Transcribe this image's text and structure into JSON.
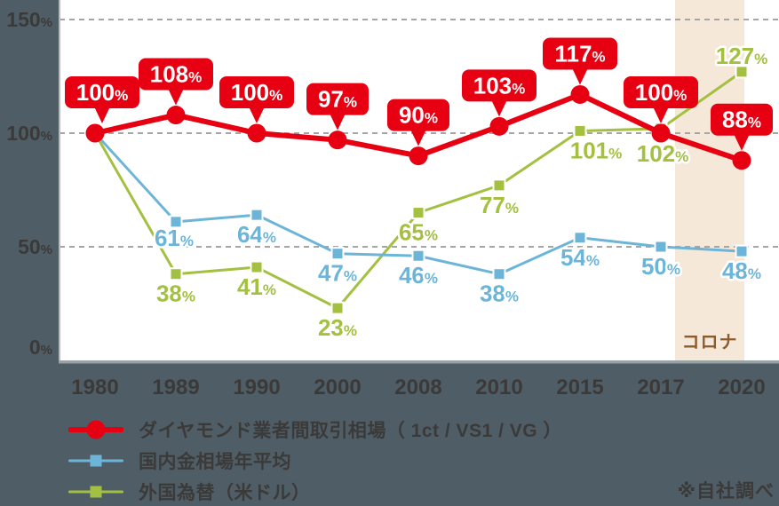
{
  "chart_data": {
    "type": "line",
    "title": "",
    "categories": [
      "1980",
      "1989",
      "1990",
      "2000",
      "2008",
      "2010",
      "2015",
      "2017",
      "2020"
    ],
    "series": [
      {
        "name": "ダイヤモンド業者間取引相場（ 1ct / VS1 / VG ）",
        "color": "#e60012",
        "marker": "circle",
        "label_style": "badge",
        "values": [
          100,
          108,
          100,
          97,
          90,
          103,
          117,
          100,
          88
        ],
        "labels": [
          "100%",
          "108%",
          "100%",
          "97%",
          "90%",
          "103%",
          "117%",
          "100%",
          "88%"
        ]
      },
      {
        "name": "国内金相場年平均",
        "color": "#6cb5d8",
        "marker": "square",
        "label_style": "text",
        "values": [
          100,
          61,
          64,
          47,
          46,
          38,
          54,
          50,
          48
        ],
        "labels": [
          "",
          "61%",
          "64%",
          "47%",
          "46%",
          "38%",
          "54%",
          "50%",
          "48%"
        ]
      },
      {
        "name": "外国為替（米ドル）",
        "color": "#a3c041",
        "marker": "square",
        "label_style": "text",
        "values": [
          100,
          38,
          41,
          23,
          65,
          77,
          101,
          102,
          127
        ],
        "labels": [
          "",
          "38%",
          "41%",
          "23%",
          "65%",
          "77%",
          "101%",
          "102%",
          "127%"
        ]
      }
    ],
    "yticks": [
      "150%",
      "100%",
      "50%",
      "0%"
    ],
    "ytick_values": [
      150,
      100,
      50,
      0
    ],
    "ylim": [
      0,
      159
    ],
    "grid": "horizontal-dashed",
    "legend_position": "bottom-left",
    "annotation_band": {
      "label": "コロナ",
      "between": [
        "2017",
        "2020"
      ]
    }
  },
  "annotations": {
    "source_note": "※自社調べ"
  },
  "colors": {
    "background": "#4f5d66",
    "plot_background": "#ffffff",
    "band_fill": "#f6e8d8",
    "band_label_text": "#8a5c2e",
    "gridline": "#a5a5a5",
    "axis_line": "#98a1a3",
    "plot_left_border": "#b7bdbf",
    "axis_text": "#3b3a38",
    "badge_background": "#e60012",
    "badge_text": "#ffffff",
    "value_label_outline": "#ffffff"
  }
}
